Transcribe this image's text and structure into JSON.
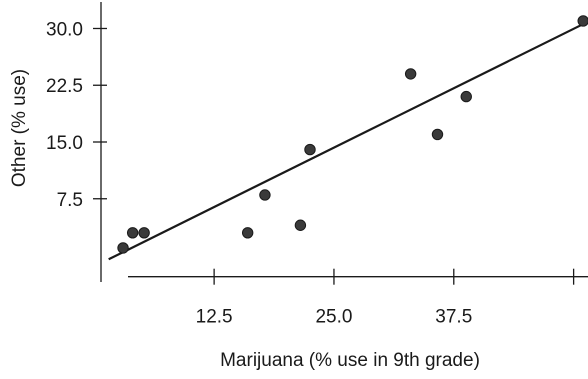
{
  "chart_data": {
    "type": "scatter",
    "title": "",
    "xlabel": "Marijuana (% use in 9th grade)",
    "ylabel": "Other (% use)",
    "xlim": [
      0.7,
      51.5
    ],
    "ylim": [
      -3.5,
      33.5
    ],
    "x_axis_crosses_y_at": -2.8,
    "y_axis_crosses_x_at": 0.7,
    "x_ticks": [
      {
        "value": 12.5,
        "label": "12.5"
      },
      {
        "value": 25.0,
        "label": "25.0"
      },
      {
        "value": 37.5,
        "label": "37.5"
      },
      {
        "value": 50.0,
        "label": ""
      }
    ],
    "y_ticks": [
      {
        "value": 7.5,
        "label": "7.5"
      },
      {
        "value": 15.0,
        "label": "15.0"
      },
      {
        "value": 22.5,
        "label": "22.5"
      },
      {
        "value": 30.0,
        "label": "30.0"
      }
    ],
    "points": [
      {
        "x": 3.0,
        "y": 1.0
      },
      {
        "x": 4.0,
        "y": 3.0
      },
      {
        "x": 5.2,
        "y": 3.0
      },
      {
        "x": 16.0,
        "y": 3.0
      },
      {
        "x": 17.8,
        "y": 8.0
      },
      {
        "x": 21.5,
        "y": 4.0
      },
      {
        "x": 22.5,
        "y": 14.0
      },
      {
        "x": 33.0,
        "y": 24.0
      },
      {
        "x": 35.8,
        "y": 16.0
      },
      {
        "x": 38.8,
        "y": 21.0
      },
      {
        "x": 51.0,
        "y": 31.0
      }
    ],
    "fit_line": {
      "x": [
        1.5,
        51.5
      ],
      "y": [
        -0.5,
        30.9
      ]
    },
    "grid": false,
    "legend": "none",
    "colors": {
      "points": "#3a3a3a",
      "line": "#1a1a1a",
      "axes": "#1a1a1a",
      "text": "#1a1a1a"
    }
  }
}
